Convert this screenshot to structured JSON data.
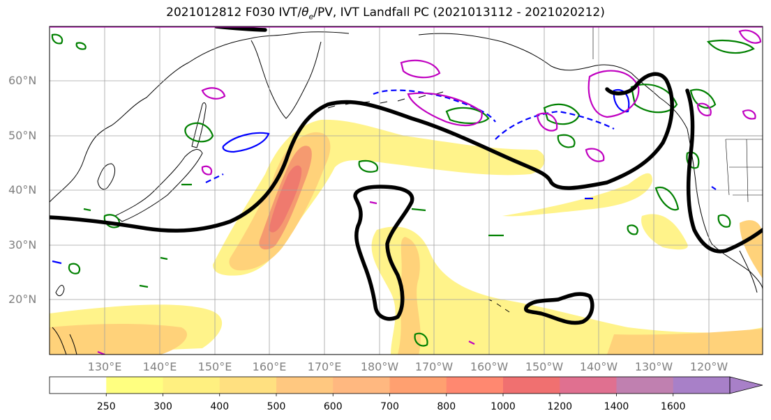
{
  "title": "2021012812 F030 IVT/θe/PV, IVT Landfall PC (2021013112 - 2021020212)",
  "title_parts": {
    "before": "2021012812 F030 IVT/",
    "theta": "θ",
    "sub": "e",
    "after": "/PV, IVT Landfall PC (2021013112 - 2021020212)"
  },
  "lat_labels": [
    "60°N",
    "50°N",
    "40°N",
    "30°N",
    "20°N"
  ],
  "lon_labels": [
    "130°E",
    "140°E",
    "150°E",
    "160°E",
    "170°E",
    "180°W",
    "170°W",
    "160°W",
    "150°W",
    "140°W",
    "130°W",
    "120°W"
  ],
  "colorbar": {
    "levels": [
      "250",
      "300",
      "400",
      "500",
      "600",
      "700",
      "800",
      "1000",
      "1200",
      "1400",
      "1600"
    ],
    "colors": [
      "#ffffff",
      "#ffff80",
      "#fff080",
      "#ffe080",
      "#ffc880",
      "#ffb880",
      "#ffa070",
      "#ff8870",
      "#f07070",
      "#e07090",
      "#c080b0",
      "#a880c8"
    ]
  },
  "colors": {
    "ivt_low": "#fff38a",
    "ivt_mid": "#ffc27a",
    "ivt_high": "#f27a6e",
    "pc_contour": "#000000",
    "pv_green": "#008000",
    "theta_blue": "#0000ff",
    "magenta": "#c000c0",
    "coast": "#000000",
    "grid": "#a0a0a0"
  }
}
